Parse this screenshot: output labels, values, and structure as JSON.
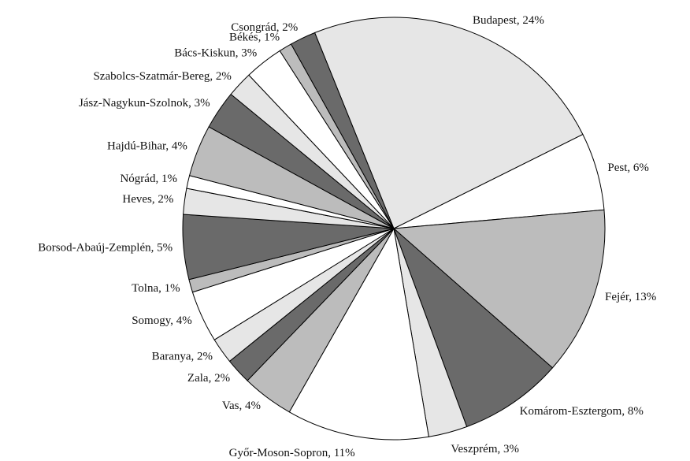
{
  "chart_data": {
    "type": "pie",
    "value_labels": [
      "Budapest, 24%",
      "Pest, 6%",
      "Fejér, 13%",
      "Komárom-Esztergom, 8%",
      "Veszprém, 3%",
      "Győr-Moson-Sopron, 11%",
      "Vas, 4%",
      "Zala, 2%",
      "Baranya, 2%",
      "Somogy, 4%",
      "Tolna, 1%",
      "Borsod-Abaúj-Zemplén, 5%",
      "Heves, 2%",
      "Nógrád, 1%",
      "Hajdú-Bihar, 4%",
      "Jász-Nagykun-Szolnok, 3%",
      "Szabolcs-Szatmár-Bereg, 2%",
      "Bács-Kiskun, 3%",
      "Békés, 1%",
      "Csongrád, 2%"
    ],
    "values": [
      24,
      6,
      13,
      8,
      3,
      11,
      4,
      2,
      2,
      4,
      1,
      5,
      2,
      1,
      4,
      3,
      2,
      3,
      1,
      2
    ],
    "colors": [
      "#e6e6e6",
      "#ffffff",
      "#bcbcbc",
      "#6a6a6a",
      "#e6e6e6",
      "#ffffff",
      "#bcbcbc",
      "#6a6a6a",
      "#e6e6e6",
      "#ffffff",
      "#bcbcbc",
      "#6a6a6a",
      "#e6e6e6",
      "#ffffff",
      "#bcbcbc",
      "#6a6a6a",
      "#e6e6e6",
      "#ffffff",
      "#bcbcbc",
      "#6a6a6a"
    ]
  }
}
